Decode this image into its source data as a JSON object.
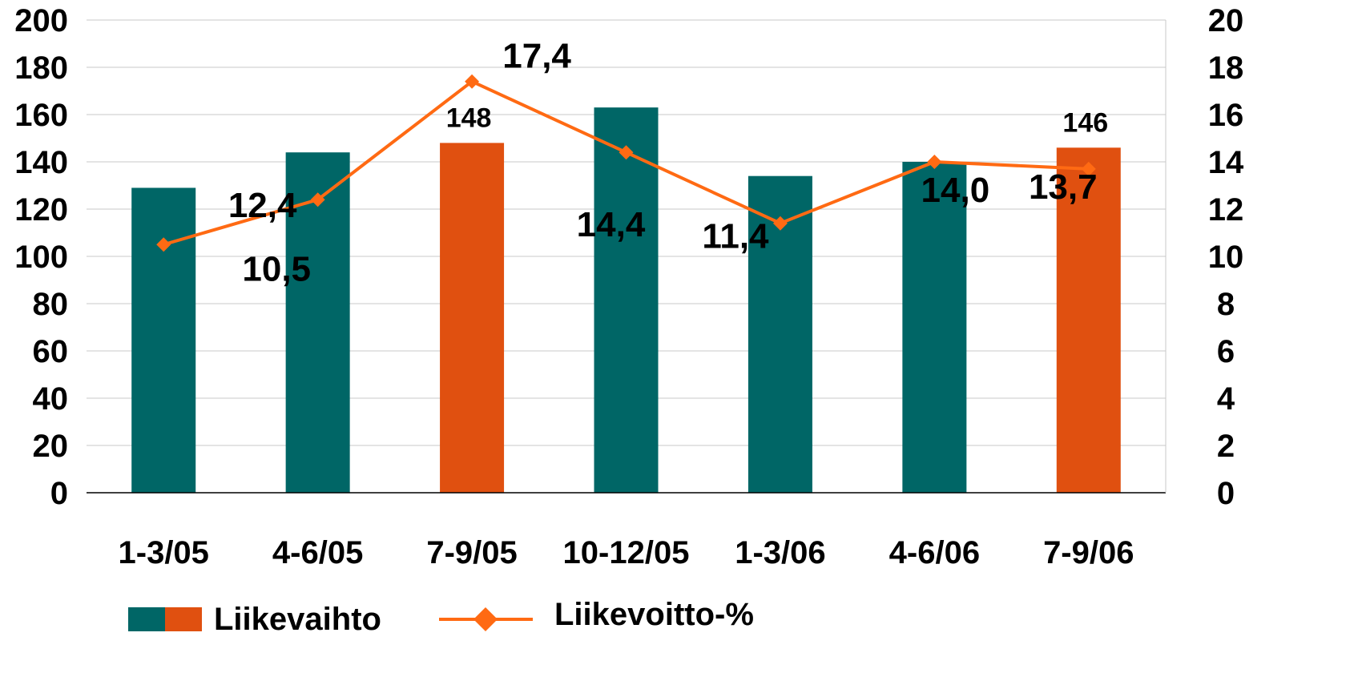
{
  "chart_data": {
    "type": "bar",
    "categories": [
      "1-3/05",
      "4-6/05",
      "7-9/05",
      "10-12/05",
      "1-3/06",
      "4-6/06",
      "7-9/06"
    ],
    "series": [
      {
        "name": "Liikevaihto",
        "type": "bar",
        "axis": "left",
        "values": [
          129,
          144,
          148,
          163,
          134,
          140,
          146
        ],
        "colors": [
          "#006666",
          "#006666",
          "#E05010",
          "#006666",
          "#006666",
          "#006666",
          "#E05010"
        ],
        "data_labels": [
          "",
          "",
          "148",
          "",
          "",
          "",
          "146"
        ]
      },
      {
        "name": "Liikevoitto-%",
        "type": "line",
        "axis": "right",
        "values": [
          10.5,
          12.4,
          17.4,
          14.4,
          11.4,
          14.0,
          13.7
        ],
        "color": "#FF6A13",
        "marker": "diamond",
        "data_labels": [
          "10,5",
          "12,4",
          "17,4",
          "14,4",
          "11,4",
          "14,0",
          "13,7"
        ]
      }
    ],
    "y_left": {
      "min": 0,
      "max": 200,
      "step": 20,
      "ticks": [
        "0",
        "20",
        "40",
        "60",
        "80",
        "100",
        "120",
        "140",
        "160",
        "180",
        "200"
      ]
    },
    "y_right": {
      "min": 0,
      "max": 20,
      "step": 2,
      "ticks": [
        "0",
        "2",
        "4",
        "6",
        "8",
        "10",
        "12",
        "14",
        "16",
        "18",
        "20"
      ]
    },
    "grid": true,
    "legend": {
      "position": "bottom-left",
      "items": [
        {
          "label": "Liikevaihto",
          "kind": "bar",
          "colors": [
            "#006666",
            "#E05010"
          ]
        },
        {
          "label": "Liikevoitto-%",
          "kind": "line",
          "color": "#FF6A13"
        }
      ]
    }
  }
}
